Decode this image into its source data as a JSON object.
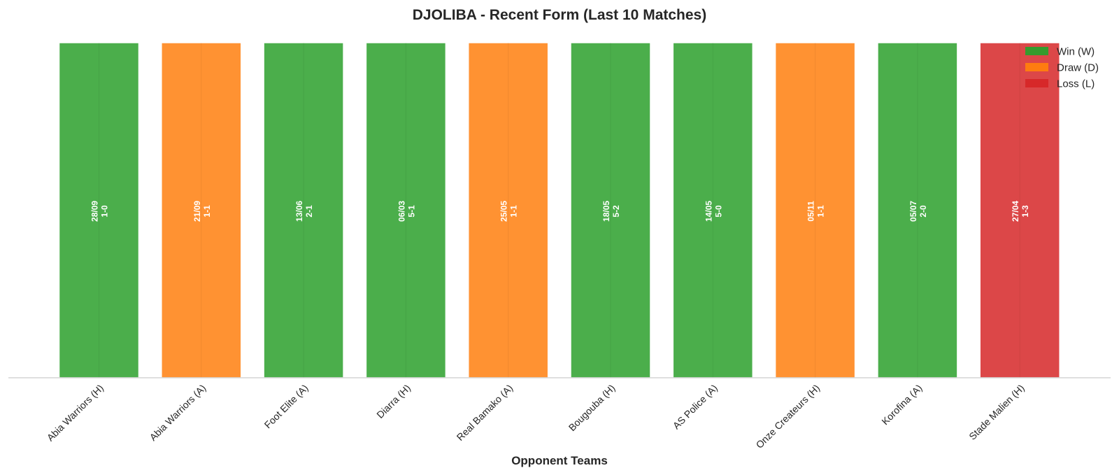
{
  "chart_data": {
    "type": "bar",
    "title": "DJOLIBA - Recent Form (Last 10 Matches)",
    "xlabel": "Opponent Teams",
    "ylabel": "",
    "ylim": [
      0,
      1
    ],
    "grid": false,
    "legend_position": "top-right",
    "legend": [
      {
        "key": "W",
        "label": "Win (W)",
        "color": "#2ca02c"
      },
      {
        "key": "D",
        "label": "Draw (D)",
        "color": "#ff7f0e"
      },
      {
        "key": "L",
        "label": "Loss (L)",
        "color": "#d62728"
      }
    ],
    "categories": [
      "Abia Warriors (H)",
      "Abia Warriors (A)",
      "Foot Elite (A)",
      "Diarra (H)",
      "Real Bamako (A)",
      "Bougouba (H)",
      "AS Police (A)",
      "Onze Createurs (H)",
      "Korofina (A)",
      "Stade Malien (H)"
    ],
    "values": [
      1,
      1,
      1,
      1,
      1,
      1,
      1,
      1,
      1,
      1
    ],
    "results": [
      "W",
      "D",
      "W",
      "W",
      "D",
      "W",
      "W",
      "D",
      "W",
      "L"
    ],
    "dates": [
      "28/09",
      "21/09",
      "13/06",
      "06/03",
      "25/05",
      "18/05",
      "14/05",
      "05/11",
      "05/07",
      "27/04"
    ],
    "scores": [
      "1-0",
      "1-1",
      "2-1",
      "5-1",
      "1-1",
      "5-2",
      "5-0",
      "1-1",
      "2-0",
      "1-3"
    ]
  }
}
